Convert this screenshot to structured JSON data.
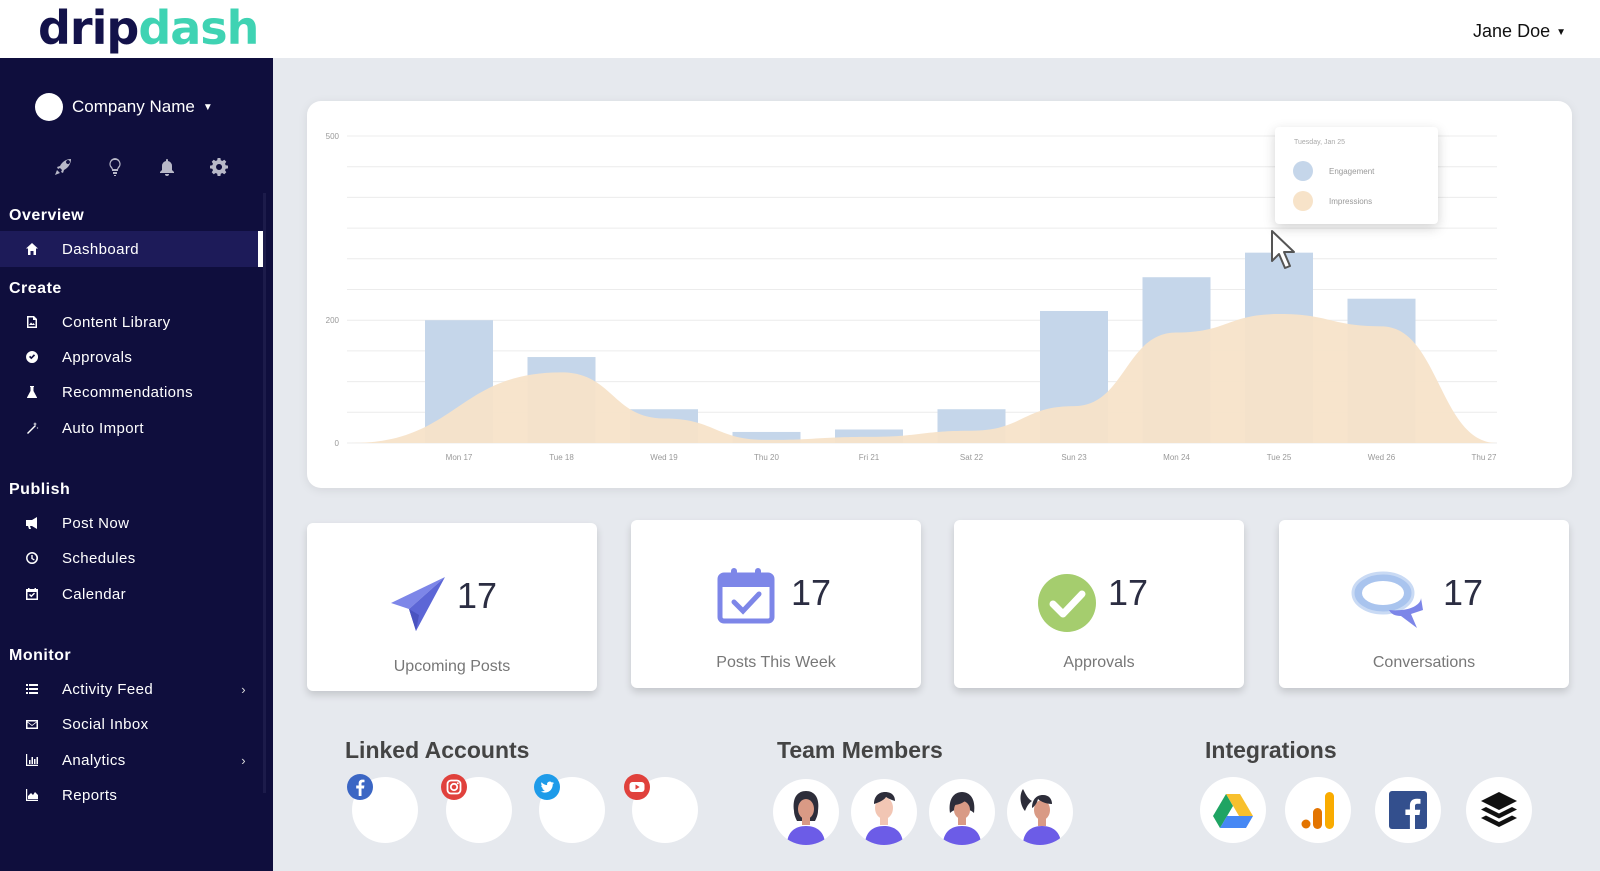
{
  "header": {
    "logo_part1": "drip",
    "logo_part2": "dash",
    "user_name": "Jane Doe"
  },
  "sidebar": {
    "company_name": "Company Name",
    "quick_icons": [
      "rocket-icon",
      "lightbulb-icon",
      "bell-icon",
      "gear-icon"
    ],
    "sections": [
      {
        "title": "Overview",
        "items": [
          {
            "label": "Dashboard",
            "icon": "home-icon",
            "active": true
          }
        ]
      },
      {
        "title": "Create",
        "items": [
          {
            "label": "Content Library",
            "icon": "image-file-icon"
          },
          {
            "label": "Approvals",
            "icon": "check-circle-icon"
          },
          {
            "label": "Recommendations",
            "icon": "flask-icon"
          },
          {
            "label": "Auto Import",
            "icon": "magic-wand-icon"
          }
        ]
      },
      {
        "title": "Publish",
        "items": [
          {
            "label": "Post Now",
            "icon": "megaphone-icon"
          },
          {
            "label": "Schedules",
            "icon": "clock-icon"
          },
          {
            "label": "Calendar",
            "icon": "calendar-check-icon"
          }
        ]
      },
      {
        "title": "Monitor",
        "items": [
          {
            "label": "Activity Feed",
            "icon": "list-icon",
            "expandable": true
          },
          {
            "label": "Social Inbox",
            "icon": "envelope-icon"
          },
          {
            "label": "Analytics",
            "icon": "bar-chart-icon",
            "expandable": true
          },
          {
            "label": "Reports",
            "icon": "area-chart-icon"
          }
        ]
      }
    ]
  },
  "chart": {
    "tooltip": {
      "date": "Tuesday, Jan 25",
      "series": [
        "Engagement",
        "Impressions"
      ]
    }
  },
  "chart_data": {
    "type": "bar",
    "categories": [
      "Mon 17",
      "Tue 18",
      "Wed 19",
      "Thu 20",
      "Fri 21",
      "Sat 22",
      "Sun 23",
      "Mon 24",
      "Tue 25",
      "Wed 26",
      "Thu 27"
    ],
    "series": [
      {
        "name": "Engagement",
        "type": "bar",
        "values": [
          200,
          140,
          55,
          18,
          22,
          55,
          215,
          270,
          310,
          235,
          0
        ]
      },
      {
        "name": "Impressions",
        "type": "area",
        "values": [
          0,
          115,
          40,
          5,
          10,
          20,
          60,
          180,
          210,
          190,
          0
        ]
      }
    ],
    "yticks": [
      0,
      200,
      500
    ],
    "ylim": [
      0,
      500
    ],
    "colors": {
      "Engagement": "#c5d6ea",
      "Impressions": "#f7e3c9"
    },
    "grid": true
  },
  "stats": [
    {
      "value": "17",
      "label": "Upcoming Posts",
      "icon": "paper-plane-icon"
    },
    {
      "value": "17",
      "label": "Posts This Week",
      "icon": "calendar-check-icon"
    },
    {
      "value": "17",
      "label": "Approvals",
      "icon": "check-circle-icon"
    },
    {
      "value": "17",
      "label": "Conversations",
      "icon": "chat-bubbles-icon"
    }
  ],
  "bottom": {
    "linked_accounts_title": "Linked Accounts",
    "team_members_title": "Team Members",
    "integrations_title": "Integrations",
    "linked_accounts": [
      "facebook-icon",
      "instagram-icon",
      "twitter-icon",
      "youtube-icon"
    ],
    "team_members": [
      "team-member-1",
      "team-member-2",
      "team-member-3",
      "team-member-4"
    ],
    "integrations": [
      "google-drive-icon",
      "google-analytics-icon",
      "facebook-icon",
      "buffer-icon"
    ]
  }
}
